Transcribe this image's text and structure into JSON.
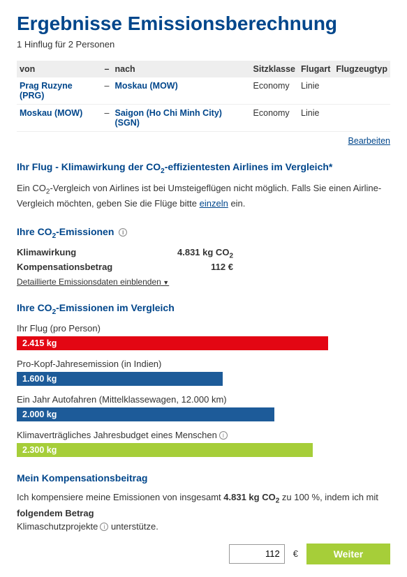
{
  "title": "Ergebnisse Emissionsberechnung",
  "subtitle": "1 Hinflug für 2 Personen",
  "table": {
    "headers": {
      "from": "von",
      "dash": "–",
      "to": "nach",
      "class": "Sitzklasse",
      "type": "Flugart",
      "aircraft": "Flugzeugtyp"
    },
    "rows": [
      {
        "from": "Prag Ruzyne (PRG)",
        "to": "Moskau (MOW)",
        "class": "Economy",
        "type": "Linie",
        "aircraft": ""
      },
      {
        "from": "Moskau (MOW)",
        "to": "Saigon (Ho Chi Minh City) (SGN)",
        "class": "Economy",
        "type": "Linie",
        "aircraft": ""
      }
    ],
    "edit": "Bearbeiten"
  },
  "airline_compare": {
    "heading_pre": "Ihr Flug - Klimawirkung der CO",
    "heading_post": "-effizientesten Airlines im Vergleich*",
    "text_pre": "Ein CO",
    "text_mid": "-Vergleich von Airlines ist bei Umsteigeflügen nicht möglich. Falls Sie einen Airline-Vergleich möchten, geben Sie die Flüge bitte ",
    "link": "einzeln",
    "text_post": " ein."
  },
  "emissions": {
    "heading_pre": "Ihre CO",
    "heading_post": "-Emissionen",
    "rows": [
      {
        "label": "Klimawirkung",
        "value": "4.831 kg CO",
        "sub": "2"
      },
      {
        "label": "Kompensationsbetrag",
        "value": "112 €",
        "sub": ""
      }
    ],
    "detail": "Detaillierte Emissionsdaten einblenden"
  },
  "comparison": {
    "heading_pre": "Ihre CO",
    "heading_post": "-Emissionen im Vergleich",
    "max_value": 2900,
    "items": [
      {
        "label": "Ihr Flug (pro Person)",
        "value": 2415,
        "display": "2.415 kg",
        "color": "#e30613",
        "info": false
      },
      {
        "label": "Pro-Kopf-Jahresemission (in Indien)",
        "value": 1600,
        "display": "1.600 kg",
        "color": "#1d5b99",
        "info": false
      },
      {
        "label": "Ein Jahr Autofahren (Mittelklassewagen, 12.000 km)",
        "value": 2000,
        "display": "2.000 kg",
        "color": "#1d5b99",
        "info": false
      },
      {
        "label": "Klimaverträgliches Jahresbudget eines Menschen",
        "value": 2300,
        "display": "2.300 kg",
        "color": "#a6ce39",
        "info": true
      }
    ]
  },
  "compensate": {
    "heading": "Mein Kompensationsbeitrag",
    "text1": "Ich kompensiere meine Emissionen von insgesamt ",
    "bold1": "4.831 kg CO",
    "bold_sub": "2",
    "text2": " zu 100  %, indem ich mit ",
    "bold2": "folgendem Betrag",
    "text3": " Klimaschutzprojekte",
    "text4": " unterstütze.",
    "amount": "112",
    "currency": "€",
    "button": "Weiter"
  }
}
